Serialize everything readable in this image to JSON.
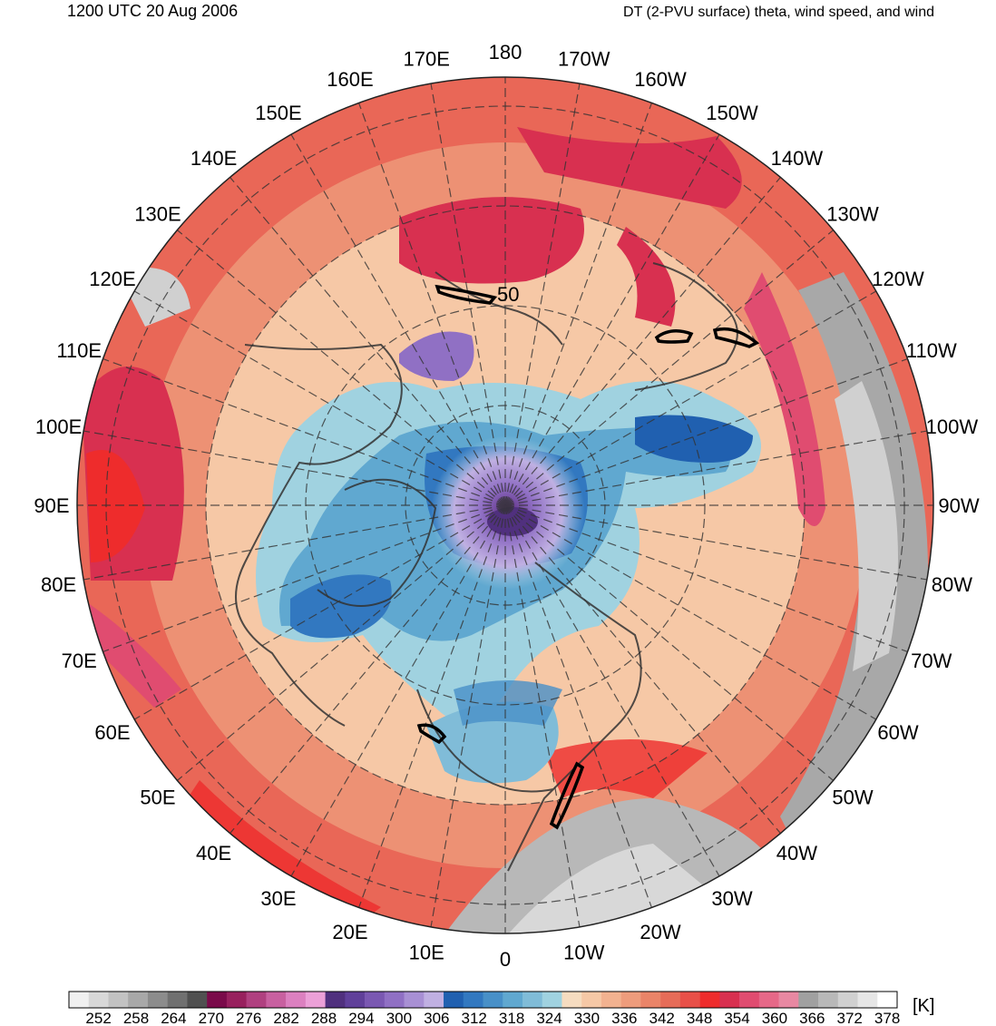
{
  "header": {
    "timestamp": "1200 UTC 20 Aug 2006",
    "title": "DT (2-PVU surface) theta, wind speed, and wind"
  },
  "map": {
    "projection": "north-polar-stereographic",
    "longitude_labels": [
      {
        "label": "180",
        "lon": 180
      },
      {
        "label": "170E",
        "lon": 170
      },
      {
        "label": "160E",
        "lon": 160
      },
      {
        "label": "150E",
        "lon": 150
      },
      {
        "label": "140E",
        "lon": 140
      },
      {
        "label": "130E",
        "lon": 130
      },
      {
        "label": "120E",
        "lon": 120
      },
      {
        "label": "110E",
        "lon": 110
      },
      {
        "label": "100E",
        "lon": 100
      },
      {
        "label": "90E",
        "lon": 90
      },
      {
        "label": "80E",
        "lon": 80
      },
      {
        "label": "70E",
        "lon": 70
      },
      {
        "label": "60E",
        "lon": 60
      },
      {
        "label": "50E",
        "lon": 50
      },
      {
        "label": "40E",
        "lon": 40
      },
      {
        "label": "30E",
        "lon": 30
      },
      {
        "label": "20E",
        "lon": 20
      },
      {
        "label": "10E",
        "lon": 10
      },
      {
        "label": "0",
        "lon": 0
      },
      {
        "label": "10W",
        "lon": -10
      },
      {
        "label": "20W",
        "lon": -20
      },
      {
        "label": "30W",
        "lon": -30
      },
      {
        "label": "40W",
        "lon": -40
      },
      {
        "label": "50W",
        "lon": -50
      },
      {
        "label": "60W",
        "lon": -60
      },
      {
        "label": "70W",
        "lon": -70
      },
      {
        "label": "80W",
        "lon": -80
      },
      {
        "label": "90W",
        "lon": -90
      },
      {
        "label": "100W",
        "lon": -100
      },
      {
        "label": "110W",
        "lon": -110
      },
      {
        "label": "120W",
        "lon": -120
      },
      {
        "label": "130W",
        "lon": -130
      },
      {
        "label": "140W",
        "lon": -140
      },
      {
        "label": "150W",
        "lon": -150
      },
      {
        "label": "160W",
        "lon": -160
      },
      {
        "label": "170W",
        "lon": -170
      }
    ],
    "contour_label": "50"
  },
  "colorbar": {
    "units": "[K]",
    "tick_labels": [
      "252",
      "258",
      "264",
      "270",
      "276",
      "282",
      "288",
      "294",
      "300",
      "306",
      "312",
      "318",
      "324",
      "330",
      "336",
      "342",
      "348",
      "354",
      "360",
      "366",
      "372",
      "378"
    ],
    "colors": [
      "#f0f0f0",
      "#d8d8d8",
      "#c2c2c2",
      "#a8a8a8",
      "#8c8c8c",
      "#707070",
      "#505050",
      "#7a0a4a",
      "#98205e",
      "#b04080",
      "#c860a0",
      "#dc80c0",
      "#eca0d8",
      "#50307e",
      "#60409a",
      "#7a58b2",
      "#9070c4",
      "#a890d4",
      "#c0b0e2",
      "#2060b0",
      "#3278c0",
      "#4890c8",
      "#60a8d0",
      "#80bcd8",
      "#a0d2e0",
      "#f6dcc0",
      "#f6c8a6",
      "#f2b290",
      "#ee9c7c",
      "#ea8468",
      "#e66c58",
      "#e85048",
      "#ee2c2c",
      "#d83050",
      "#e04c70",
      "#e66888",
      "#e888a2",
      "#a0a0a0",
      "#b8b8b8",
      "#d0d0d0",
      "#e6e6e6",
      "#ffffff"
    ]
  }
}
